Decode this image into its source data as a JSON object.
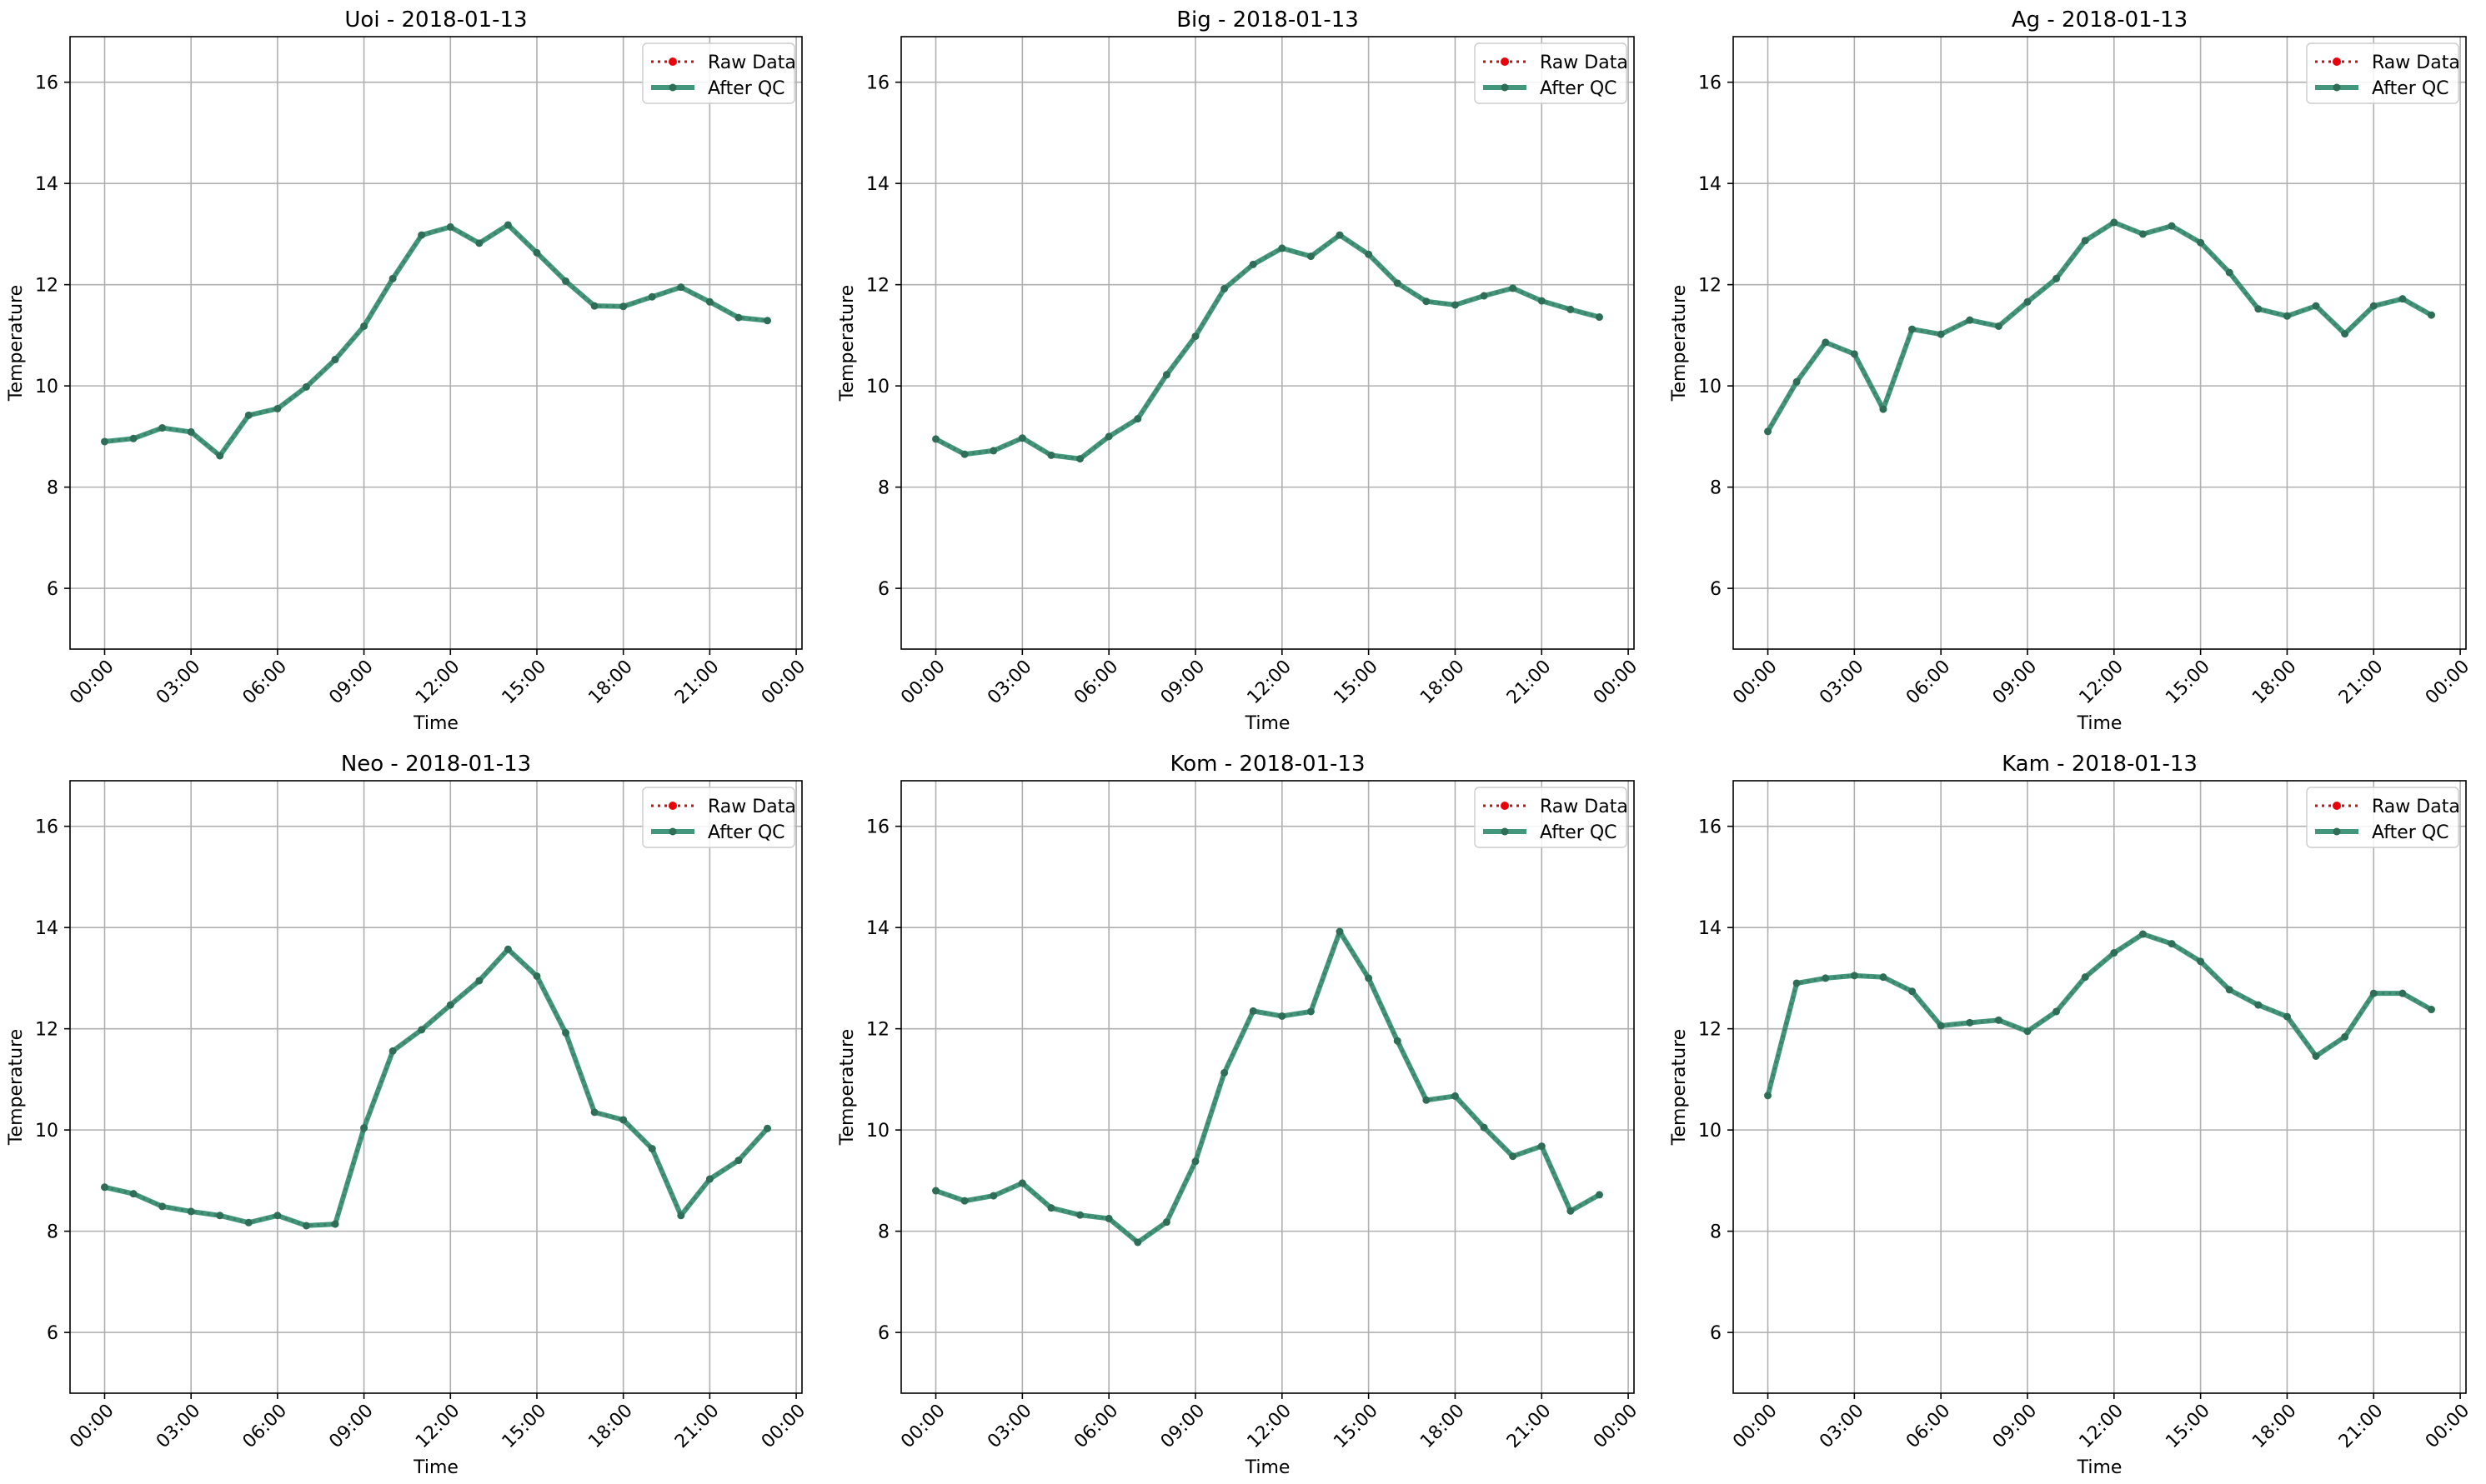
{
  "figure": {
    "colors": {
      "raw": "#e8000b",
      "qc_line": "#2e8b6e",
      "qc_marker": "#2e6e57",
      "grid": "#b0b0b0",
      "axes": "#000000"
    }
  },
  "chart_data": [
    {
      "type": "line",
      "title": "Uoi - 2018-01-13",
      "xlabel": "Time",
      "ylabel": "Temperature",
      "x": [
        "00:00",
        "01:00",
        "02:00",
        "03:00",
        "04:00",
        "05:00",
        "06:00",
        "07:00",
        "08:00",
        "09:00",
        "10:00",
        "11:00",
        "12:00",
        "13:00",
        "14:00",
        "15:00",
        "16:00",
        "17:00",
        "18:00",
        "19:00",
        "20:00",
        "21:00",
        "22:00",
        "23:00"
      ],
      "xticks": [
        "00:00",
        "03:00",
        "06:00",
        "09:00",
        "12:00",
        "15:00",
        "18:00",
        "21:00",
        "00:00"
      ],
      "xlim_hours": [
        -1.2,
        24.2
      ],
      "ylim": [
        4.8,
        16.9
      ],
      "yticks": [
        6,
        8,
        10,
        12,
        14,
        16
      ],
      "grid": true,
      "legend_position": "top-right",
      "series": [
        {
          "name": "Raw Data",
          "style": "dotted",
          "values": [
            8.9,
            8.96,
            9.17,
            9.09,
            8.62,
            9.42,
            9.55,
            9.98,
            10.52,
            11.18,
            12.12,
            12.98,
            13.14,
            12.82,
            13.18,
            12.63,
            12.07,
            11.58,
            11.57,
            11.76,
            11.95,
            11.66,
            11.35,
            11.29
          ]
        },
        {
          "name": "After QC",
          "style": "solid",
          "values": [
            8.9,
            8.96,
            9.17,
            9.09,
            8.62,
            9.42,
            9.55,
            9.98,
            10.52,
            11.18,
            12.12,
            12.98,
            13.14,
            12.82,
            13.18,
            12.63,
            12.07,
            11.58,
            11.57,
            11.76,
            11.95,
            11.66,
            11.35,
            11.29
          ]
        }
      ]
    },
    {
      "type": "line",
      "title": "Big - 2018-01-13",
      "xlabel": "Time",
      "ylabel": "Temperature",
      "x": [
        "00:00",
        "01:00",
        "02:00",
        "03:00",
        "04:00",
        "05:00",
        "06:00",
        "07:00",
        "08:00",
        "09:00",
        "10:00",
        "11:00",
        "12:00",
        "13:00",
        "14:00",
        "15:00",
        "16:00",
        "17:00",
        "18:00",
        "19:00",
        "20:00",
        "21:00",
        "22:00",
        "23:00"
      ],
      "xticks": [
        "00:00",
        "03:00",
        "06:00",
        "09:00",
        "12:00",
        "15:00",
        "18:00",
        "21:00",
        "00:00"
      ],
      "xlim_hours": [
        -1.2,
        24.2
      ],
      "ylim": [
        4.8,
        16.9
      ],
      "yticks": [
        6,
        8,
        10,
        12,
        14,
        16
      ],
      "grid": true,
      "legend_position": "top-right",
      "series": [
        {
          "name": "Raw Data",
          "style": "dotted",
          "values": [
            8.95,
            8.65,
            8.72,
            8.97,
            8.63,
            8.56,
            9.0,
            9.35,
            10.22,
            10.98,
            11.92,
            12.4,
            12.72,
            12.56,
            12.98,
            12.6,
            12.03,
            11.67,
            11.6,
            11.78,
            11.93,
            11.68,
            11.51,
            11.36
          ]
        },
        {
          "name": "After QC",
          "style": "solid",
          "values": [
            8.95,
            8.65,
            8.72,
            8.97,
            8.63,
            8.56,
            9.0,
            9.35,
            10.22,
            10.98,
            11.92,
            12.4,
            12.72,
            12.56,
            12.98,
            12.6,
            12.03,
            11.67,
            11.6,
            11.78,
            11.93,
            11.68,
            11.51,
            11.36
          ]
        }
      ]
    },
    {
      "type": "line",
      "title": "Ag - 2018-01-13",
      "xlabel": "Time",
      "ylabel": "Temperature",
      "x": [
        "00:00",
        "01:00",
        "02:00",
        "03:00",
        "04:00",
        "05:00",
        "06:00",
        "07:00",
        "08:00",
        "09:00",
        "10:00",
        "11:00",
        "12:00",
        "13:00",
        "14:00",
        "15:00",
        "16:00",
        "17:00",
        "18:00",
        "19:00",
        "20:00",
        "21:00",
        "22:00",
        "23:00"
      ],
      "xticks": [
        "00:00",
        "03:00",
        "06:00",
        "09:00",
        "12:00",
        "15:00",
        "18:00",
        "21:00",
        "00:00"
      ],
      "xlim_hours": [
        -1.2,
        24.2
      ],
      "ylim": [
        4.8,
        16.9
      ],
      "yticks": [
        6,
        8,
        10,
        12,
        14,
        16
      ],
      "grid": true,
      "legend_position": "top-right",
      "series": [
        {
          "name": "Raw Data",
          "style": "dotted",
          "values": [
            9.1,
            10.08,
            10.86,
            10.63,
            9.54,
            11.12,
            11.02,
            11.3,
            11.18,
            11.66,
            12.12,
            12.87,
            13.23,
            13.0,
            13.16,
            12.83,
            12.24,
            11.52,
            11.38,
            11.58,
            11.03,
            11.58,
            11.72,
            11.4
          ]
        },
        {
          "name": "After QC",
          "style": "solid",
          "values": [
            9.1,
            10.08,
            10.86,
            10.63,
            9.54,
            11.12,
            11.02,
            11.3,
            11.18,
            11.66,
            12.12,
            12.87,
            13.23,
            13.0,
            13.16,
            12.83,
            12.24,
            11.52,
            11.38,
            11.58,
            11.03,
            11.58,
            11.72,
            11.4
          ]
        }
      ]
    },
    {
      "type": "line",
      "title": "Neo - 2018-01-13",
      "xlabel": "Time",
      "ylabel": "Temperature",
      "x": [
        "00:00",
        "01:00",
        "02:00",
        "03:00",
        "04:00",
        "05:00",
        "06:00",
        "07:00",
        "08:00",
        "09:00",
        "10:00",
        "11:00",
        "12:00",
        "13:00",
        "14:00",
        "15:00",
        "16:00",
        "17:00",
        "18:00",
        "19:00",
        "20:00",
        "21:00",
        "22:00",
        "23:00"
      ],
      "xticks": [
        "00:00",
        "03:00",
        "06:00",
        "09:00",
        "12:00",
        "15:00",
        "18:00",
        "21:00",
        "00:00"
      ],
      "xlim_hours": [
        -1.2,
        24.2
      ],
      "ylim": [
        4.8,
        16.9
      ],
      "yticks": [
        6,
        8,
        10,
        12,
        14,
        16
      ],
      "grid": true,
      "legend_position": "top-right",
      "series": [
        {
          "name": "Raw Data",
          "style": "dotted",
          "values": [
            8.87,
            8.74,
            8.49,
            8.39,
            8.31,
            8.17,
            8.31,
            8.11,
            8.14,
            10.04,
            11.56,
            11.98,
            12.47,
            12.95,
            13.57,
            13.04,
            11.92,
            10.35,
            10.2,
            9.63,
            8.31,
            9.03,
            9.4,
            10.03
          ]
        },
        {
          "name": "After QC",
          "style": "solid",
          "values": [
            8.87,
            8.74,
            8.49,
            8.39,
            8.31,
            8.17,
            8.31,
            8.11,
            8.14,
            10.04,
            11.56,
            11.98,
            12.47,
            12.95,
            13.57,
            13.04,
            11.92,
            10.35,
            10.2,
            9.63,
            8.31,
            9.03,
            9.4,
            10.03
          ]
        }
      ]
    },
    {
      "type": "line",
      "title": "Kom - 2018-01-13",
      "xlabel": "Time",
      "ylabel": "Temperature",
      "x": [
        "00:00",
        "01:00",
        "02:00",
        "03:00",
        "04:00",
        "05:00",
        "06:00",
        "07:00",
        "08:00",
        "09:00",
        "10:00",
        "11:00",
        "12:00",
        "13:00",
        "14:00",
        "15:00",
        "16:00",
        "17:00",
        "18:00",
        "19:00",
        "20:00",
        "21:00",
        "22:00",
        "23:00"
      ],
      "xticks": [
        "00:00",
        "03:00",
        "06:00",
        "09:00",
        "12:00",
        "15:00",
        "18:00",
        "21:00",
        "00:00"
      ],
      "xlim_hours": [
        -1.2,
        24.2
      ],
      "ylim": [
        4.8,
        16.9
      ],
      "yticks": [
        6,
        8,
        10,
        12,
        14,
        16
      ],
      "grid": true,
      "legend_position": "top-right",
      "series": [
        {
          "name": "Raw Data",
          "style": "dotted",
          "values": [
            8.8,
            8.6,
            8.7,
            8.95,
            8.46,
            8.32,
            8.25,
            7.78,
            8.18,
            9.38,
            11.13,
            12.35,
            12.25,
            12.34,
            13.92,
            13.0,
            11.76,
            10.59,
            10.67,
            10.05,
            9.48,
            9.68,
            8.4,
            8.72
          ]
        },
        {
          "name": "After QC",
          "style": "solid",
          "values": [
            8.8,
            8.6,
            8.7,
            8.95,
            8.46,
            8.32,
            8.25,
            7.78,
            8.18,
            9.38,
            11.13,
            12.35,
            12.25,
            12.34,
            13.92,
            13.0,
            11.76,
            10.59,
            10.67,
            10.05,
            9.48,
            9.68,
            8.4,
            8.72
          ]
        }
      ]
    },
    {
      "type": "line",
      "title": "Kam - 2018-01-13",
      "xlabel": "Time",
      "ylabel": "Temperature",
      "x": [
        "00:00",
        "01:00",
        "02:00",
        "03:00",
        "04:00",
        "05:00",
        "06:00",
        "07:00",
        "08:00",
        "09:00",
        "10:00",
        "11:00",
        "12:00",
        "13:00",
        "14:00",
        "15:00",
        "16:00",
        "17:00",
        "18:00",
        "19:00",
        "20:00",
        "21:00",
        "22:00",
        "23:00"
      ],
      "xticks": [
        "00:00",
        "03:00",
        "06:00",
        "09:00",
        "12:00",
        "15:00",
        "18:00",
        "21:00",
        "00:00"
      ],
      "xlim_hours": [
        -1.2,
        24.2
      ],
      "ylim": [
        4.8,
        16.9
      ],
      "yticks": [
        6,
        8,
        10,
        12,
        14,
        16
      ],
      "grid": true,
      "legend_position": "top-right",
      "series": [
        {
          "name": "Raw Data",
          "style": "dotted",
          "values": [
            10.68,
            12.9,
            13.0,
            13.05,
            13.02,
            12.74,
            12.06,
            12.12,
            12.17,
            11.95,
            12.34,
            13.02,
            13.5,
            13.87,
            13.68,
            13.33,
            12.77,
            12.47,
            12.24,
            11.46,
            11.84,
            12.7,
            12.7,
            12.38
          ]
        },
        {
          "name": "After QC",
          "style": "solid",
          "values": [
            10.68,
            12.9,
            13.0,
            13.05,
            13.02,
            12.74,
            12.06,
            12.12,
            12.17,
            11.95,
            12.34,
            13.02,
            13.5,
            13.87,
            13.68,
            13.33,
            12.77,
            12.47,
            12.24,
            11.46,
            11.84,
            12.7,
            12.7,
            12.38
          ]
        }
      ]
    }
  ]
}
